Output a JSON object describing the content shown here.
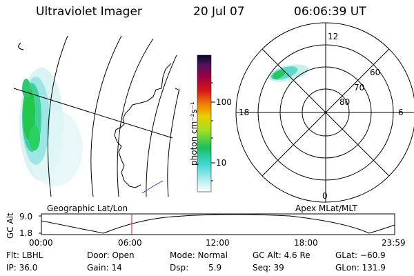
{
  "header": {
    "instrument": "Ultraviolet Imager",
    "date": "20 Jul 07",
    "time": "06:06:39 UT"
  },
  "colorbar": {
    "unit_label": "photon cm⁻²s⁻¹",
    "ticks": [
      "100",
      "10"
    ]
  },
  "polar_plot": {
    "mlt_labels": [
      "12",
      "18",
      "6",
      "0"
    ],
    "lat_labels": [
      "60",
      "70",
      "80"
    ]
  },
  "panel_labels": {
    "left": "Geographic Lat/Lon",
    "right": "Apex MLat/MLT"
  },
  "altitude_plot": {
    "ylabel": "GC Alt",
    "yticks": [
      "9.0",
      "1.8"
    ],
    "xticks": [
      "00:00",
      "06:00",
      "12:00",
      "18:00",
      "23:59"
    ]
  },
  "status": {
    "flt": "Flt: LBHL",
    "door": "Door: Open",
    "mode": "Mode: Normal",
    "gc_alt": "GC Alt: 4.6 Re",
    "glat": "GLat: −60.9",
    "ip": "IP: 36.0",
    "gain": "Gain: 14",
    "dsp_label": "Dsp:",
    "dsp_value": "5.9",
    "seq": "Seq: 39",
    "glon": "GLon: 131.9"
  },
  "colors": {
    "aurora_green": "#22d04a",
    "aurora_cyan": "#66e0e0",
    "marker_red": "#e01010"
  }
}
